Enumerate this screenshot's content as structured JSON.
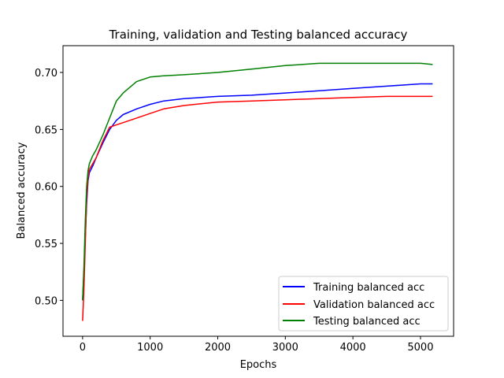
{
  "chart_data": {
    "type": "line",
    "title": "Training, validation and Testing balanced accuracy",
    "xlabel": "Epochs",
    "ylabel": "Balanced accuracy",
    "xlim": [
      -290,
      5490
    ],
    "ylim": [
      0.4685,
      0.7235
    ],
    "xticks": [
      0,
      1000,
      2000,
      3000,
      4000,
      5000
    ],
    "yticks": [
      0.5,
      0.55,
      0.6,
      0.65,
      0.7
    ],
    "ytick_labels": [
      "0.50",
      "0.55",
      "0.60",
      "0.65",
      "0.70"
    ],
    "grid": false,
    "legend_position": "lower right",
    "series": [
      {
        "name": "Training balanced acc",
        "color": "#0000ff",
        "x": [
          0,
          20,
          40,
          60,
          80,
          100,
          150,
          200,
          300,
          400,
          500,
          600,
          800,
          1000,
          1200,
          1500,
          2000,
          2500,
          3000,
          3500,
          4000,
          4500,
          5000,
          5180
        ],
        "y": [
          0.5,
          0.525,
          0.555,
          0.585,
          0.605,
          0.612,
          0.618,
          0.625,
          0.638,
          0.65,
          0.658,
          0.663,
          0.668,
          0.672,
          0.675,
          0.677,
          0.679,
          0.68,
          0.682,
          0.684,
          0.686,
          0.688,
          0.69,
          0.69
        ]
      },
      {
        "name": "Validation balanced acc",
        "color": "#ff0000",
        "x": [
          0,
          20,
          40,
          60,
          80,
          100,
          150,
          200,
          300,
          400,
          500,
          600,
          800,
          1000,
          1200,
          1500,
          2000,
          2500,
          3000,
          3500,
          4000,
          4500,
          5000,
          5180
        ],
        "y": [
          0.482,
          0.51,
          0.55,
          0.59,
          0.608,
          0.615,
          0.62,
          0.625,
          0.64,
          0.652,
          0.654,
          0.656,
          0.66,
          0.664,
          0.668,
          0.671,
          0.674,
          0.675,
          0.676,
          0.677,
          0.678,
          0.679,
          0.679,
          0.679
        ]
      },
      {
        "name": "Testing balanced acc",
        "color": "#008000",
        "x": [
          0,
          20,
          40,
          60,
          80,
          100,
          150,
          200,
          300,
          400,
          500,
          600,
          800,
          1000,
          1200,
          1500,
          2000,
          2500,
          3000,
          3500,
          4000,
          4500,
          5000,
          5180
        ],
        "y": [
          0.5,
          0.53,
          0.57,
          0.6,
          0.614,
          0.62,
          0.627,
          0.632,
          0.645,
          0.66,
          0.675,
          0.682,
          0.692,
          0.696,
          0.697,
          0.698,
          0.7,
          0.703,
          0.706,
          0.708,
          0.708,
          0.708,
          0.708,
          0.707
        ]
      }
    ]
  }
}
